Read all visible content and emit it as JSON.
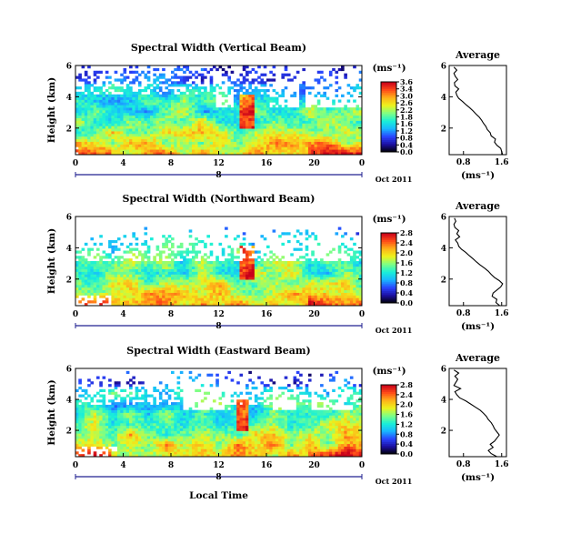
{
  "figure": {
    "xlabel": "Local Time",
    "date_label": "Oct 2011",
    "day_label": "8",
    "colorbar_unit": "(ms⁻¹)",
    "average_title": "Average",
    "average_xlabel": "(ms⁻¹)"
  },
  "chart_data": [
    {
      "type": "heatmap",
      "title": "Spectral Width (Vertical Beam)",
      "ylabel": "Height (km)",
      "xlabel": "Local Time",
      "x_ticks": [
        "0",
        "4",
        "8",
        "12",
        "16",
        "20",
        "0"
      ],
      "y_ticks": [
        "6",
        "4",
        "2"
      ],
      "xlim": [
        0,
        24
      ],
      "ylim": [
        0.3,
        6
      ],
      "colorbar": {
        "unit": "(ms⁻¹)",
        "ticks": [
          "3.6",
          "3.4",
          "3.0",
          "2.6",
          "2.2",
          "1.8",
          "1.6",
          "1.2",
          "0.8",
          "0.4",
          "0.0"
        ],
        "range": [
          0,
          3.6
        ]
      },
      "cmap_stops": [
        "#000000",
        "#1c0fa0",
        "#2a45ff",
        "#19b7ff",
        "#19f0d8",
        "#7fff84",
        "#ecf31d",
        "#ffb219",
        "#ff4b19",
        "#c8001a"
      ],
      "nodata_color": "#ffffff",
      "gen": {
        "white_top": 4.2,
        "white_strength": 0.35,
        "bottom_gap": [
          0,
          0.2
        ],
        "hot_patch": 3.0,
        "plume": [
          13.8,
          15.0
        ],
        "gaps": [
          [
            11.8,
            13.2
          ],
          [
            16.2,
            18.8
          ],
          [
            19.2,
            24
          ]
        ],
        "seed": 11
      },
      "average": {
        "title": "Average",
        "xlabel": "(ms⁻¹)",
        "x_ticks": [
          "0.8",
          "1.6"
        ],
        "y_ticks": [
          "6",
          "4",
          "2"
        ],
        "xlim": [
          0.5,
          1.7
        ],
        "ylim": [
          0.3,
          6
        ],
        "height": [
          0.3,
          0.5,
          0.7,
          0.9,
          1.1,
          1.3,
          1.5,
          1.7,
          1.9,
          2.1,
          2.3,
          2.5,
          2.7,
          2.9,
          3.1,
          3.3,
          3.5,
          3.7,
          3.9,
          4.1,
          4.3,
          4.5,
          4.7,
          4.9,
          5.1,
          5.3,
          5.5,
          5.7,
          5.9
        ],
        "width": [
          1.62,
          1.6,
          1.58,
          1.5,
          1.45,
          1.47,
          1.38,
          1.36,
          1.3,
          1.27,
          1.22,
          1.18,
          1.13,
          1.06,
          1.0,
          0.93,
          0.85,
          0.78,
          0.7,
          0.66,
          0.64,
          0.7,
          0.62,
          0.61,
          0.68,
          0.63,
          0.6,
          0.66,
          0.6
        ]
      }
    },
    {
      "type": "heatmap",
      "title": "Spectral Width (Northward Beam)",
      "ylabel": "Height (km)",
      "xlabel": "Local Time",
      "x_ticks": [
        "0",
        "4",
        "8",
        "12",
        "16",
        "20",
        "0"
      ],
      "y_ticks": [
        "6",
        "4",
        "2"
      ],
      "xlim": [
        0,
        24
      ],
      "ylim": [
        0.3,
        6
      ],
      "colorbar": {
        "unit": "(ms⁻¹)",
        "ticks": [
          "2.8",
          "2.4",
          "2.0",
          "1.6",
          "1.2",
          "0.8",
          "0.4",
          "0.0"
        ],
        "range": [
          0,
          2.8
        ]
      },
      "cmap_stops": [
        "#000000",
        "#1c0fa0",
        "#2a45ff",
        "#19b7ff",
        "#19f0d8",
        "#7fff84",
        "#ecf31d",
        "#ffb219",
        "#ff4b19",
        "#c8001a"
      ],
      "nodata_color": "#ffffff",
      "gen": {
        "white_top": 3.2,
        "white_strength": 0.45,
        "bottom_gap": [
          0,
          3.0
        ],
        "hot_patch": 2.6,
        "plume": [
          13.8,
          15.0
        ],
        "gaps": [
          [
            11.5,
            13.0
          ],
          [
            15.6,
            18.4
          ],
          [
            18.8,
            22.4
          ]
        ],
        "seed": 23
      },
      "average": {
        "title": "Average",
        "xlabel": "(ms⁻¹)",
        "x_ticks": [
          "0.8",
          "1.6"
        ],
        "y_ticks": [
          "6",
          "4",
          "2"
        ],
        "xlim": [
          0.5,
          1.7
        ],
        "ylim": [
          0.3,
          6
        ],
        "height": [
          0.3,
          0.5,
          0.7,
          0.9,
          1.1,
          1.3,
          1.5,
          1.7,
          1.9,
          2.1,
          2.3,
          2.5,
          2.7,
          2.9,
          3.1,
          3.3,
          3.5,
          3.7,
          3.9,
          4.1,
          4.3,
          4.5,
          4.7,
          4.9,
          5.1,
          5.3,
          5.5,
          5.7,
          5.9
        ],
        "width": [
          1.56,
          1.48,
          1.5,
          1.4,
          1.42,
          1.5,
          1.58,
          1.62,
          1.55,
          1.45,
          1.38,
          1.32,
          1.24,
          1.15,
          1.07,
          1.0,
          0.92,
          0.85,
          0.76,
          0.7,
          0.68,
          0.63,
          0.72,
          0.66,
          0.7,
          0.62,
          0.6,
          0.64,
          0.61
        ]
      }
    },
    {
      "type": "heatmap",
      "title": "Spectral Width (Eastward Beam)",
      "ylabel": "Height (km)",
      "xlabel": "Local Time",
      "x_ticks": [
        "0",
        "4",
        "8",
        "12",
        "16",
        "20",
        "0"
      ],
      "y_ticks": [
        "6",
        "4",
        "2"
      ],
      "xlim": [
        0,
        24
      ],
      "ylim": [
        0.3,
        6
      ],
      "colorbar": {
        "unit": "(ms⁻¹)",
        "ticks": [
          "2.8",
          "2.4",
          "2.0",
          "1.6",
          "1.2",
          "0.8",
          "0.4",
          "0.0"
        ],
        "range": [
          0,
          2.8
        ]
      },
      "cmap_stops": [
        "#000000",
        "#1c0fa0",
        "#2a45ff",
        "#19b7ff",
        "#19f0d8",
        "#7fff84",
        "#ecf31d",
        "#ffb219",
        "#ff4b19",
        "#c8001a"
      ],
      "nodata_color": "#ffffff",
      "gen": {
        "white_top": 3.6,
        "white_strength": 0.4,
        "bottom_gap": [
          0,
          3.5
        ],
        "hot_patch": 2.6,
        "plume": [
          13.6,
          14.6
        ],
        "gaps": [
          [
            9.0,
            13.0
          ],
          [
            16.4,
            18.6
          ],
          [
            19.8,
            23.2
          ]
        ],
        "seed": 37
      },
      "average": {
        "title": "Average",
        "xlabel": "(ms⁻¹)",
        "x_ticks": [
          "0.8",
          "1.6"
        ],
        "y_ticks": [
          "6",
          "4",
          "2"
        ],
        "xlim": [
          0.5,
          1.7
        ],
        "ylim": [
          0.3,
          6
        ],
        "height": [
          0.3,
          0.5,
          0.7,
          0.9,
          1.1,
          1.3,
          1.5,
          1.7,
          1.9,
          2.1,
          2.3,
          2.5,
          2.7,
          2.9,
          3.1,
          3.3,
          3.5,
          3.7,
          3.9,
          4.1,
          4.3,
          4.5,
          4.7,
          4.9,
          5.1,
          5.3,
          5.5,
          5.7,
          5.9
        ],
        "width": [
          1.5,
          1.38,
          1.32,
          1.42,
          1.36,
          1.45,
          1.5,
          1.55,
          1.5,
          1.45,
          1.42,
          1.38,
          1.32,
          1.28,
          1.22,
          1.15,
          1.05,
          0.95,
          0.85,
          0.72,
          0.66,
          0.62,
          0.74,
          0.6,
          0.64,
          0.68,
          0.62,
          0.7,
          0.6
        ]
      }
    }
  ]
}
